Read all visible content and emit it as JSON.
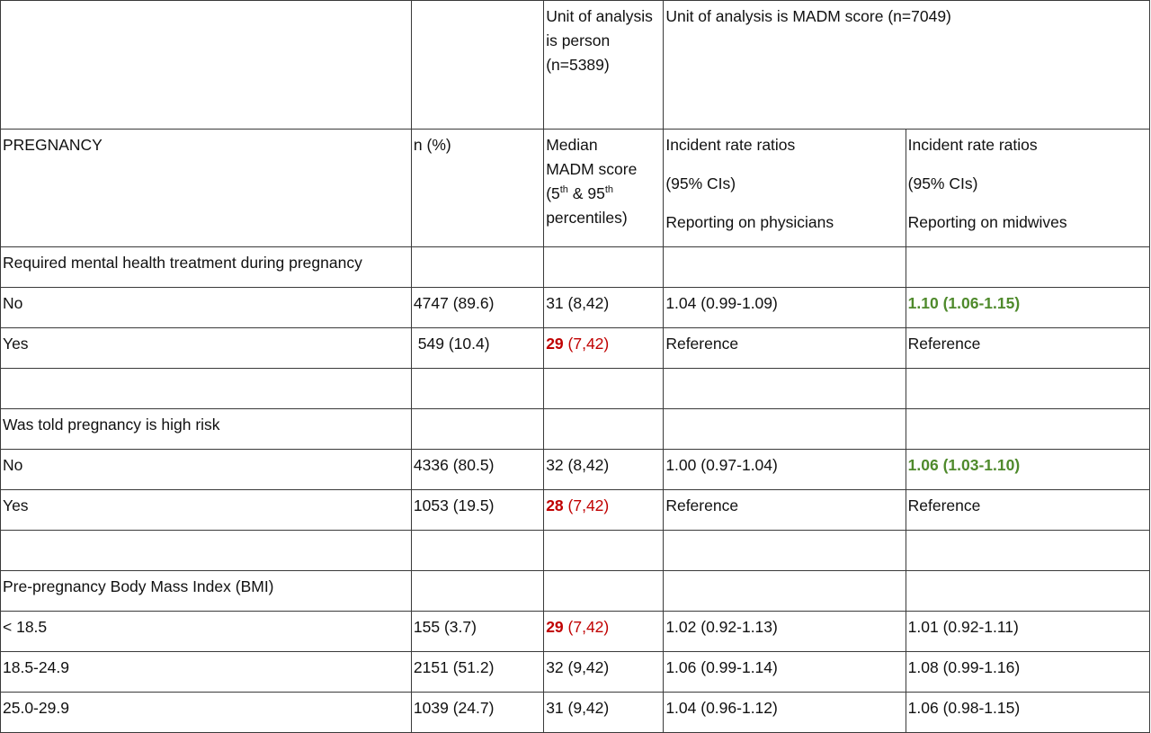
{
  "header_top": {
    "unit_person": [
      "Unit of analysis",
      "is person",
      "(n=5389)"
    ],
    "unit_madm": "Unit of analysis is MADM score (n=7049)"
  },
  "header_main": {
    "col1": "PREGNANCY",
    "col2": "n (%)",
    "col3": {
      "line1": "Median",
      "line2": "MADM score",
      "line3_pre": "(5",
      "sup1": "th",
      "line3_mid": " & 95",
      "sup2": "th",
      "line4": "percentiles)"
    },
    "col4": [
      "Incident rate ratios",
      "(95% CIs)",
      "Reporting on physicians"
    ],
    "col5": [
      "Incident rate ratios",
      "(95% CIs)",
      "Reporting on midwives"
    ]
  },
  "rows": [
    {
      "label": "Required mental health treatment during pregnancy",
      "n": "",
      "median_bold": "",
      "median_rest": "",
      "irr_phys": "",
      "irr_mid": ""
    },
    {
      "label": "No",
      "n": "4747 (89.6)",
      "median_bold": "",
      "median_rest": "31 (8,42)",
      "irr_phys": "1.04 (0.99-1.09)",
      "irr_mid": "1.10 (1.06-1.15)"
    },
    {
      "label": "Yes",
      "n": " 549 (10.4)",
      "median_bold": "29",
      "median_rest": " (7,42)",
      "irr_phys": "Reference",
      "irr_mid": "Reference"
    },
    {
      "label": "",
      "n": "",
      "median_bold": "",
      "median_rest": "",
      "irr_phys": "",
      "irr_mid": ""
    },
    {
      "label": "Was told pregnancy is high risk",
      "n": "",
      "median_bold": "",
      "median_rest": "",
      "irr_phys": "",
      "irr_mid": ""
    },
    {
      "label": "No",
      "n": "4336 (80.5)",
      "median_bold": "",
      "median_rest": "32 (8,42)",
      "irr_phys": "1.00 (0.97-1.04)",
      "irr_mid": "1.06 (1.03-1.10)"
    },
    {
      "label": "Yes",
      "n": "1053 (19.5)",
      "median_bold": "28",
      "median_rest": " (7,42)",
      "irr_phys": "Reference",
      "irr_mid": "Reference"
    },
    {
      "label": "",
      "n": "",
      "median_bold": "",
      "median_rest": "",
      "irr_phys": "",
      "irr_mid": ""
    },
    {
      "label": "Pre-pregnancy Body Mass Index (BMI)",
      "n": "",
      "median_bold": "",
      "median_rest": "",
      "irr_phys": "",
      "irr_mid": ""
    },
    {
      "label": "< 18.5",
      "n": "155 (3.7)",
      "median_bold": "29",
      "median_rest": " (7,42)",
      "irr_phys": "1.02 (0.92-1.13)",
      "irr_mid": "1.01 (0.92-1.11)"
    },
    {
      "label": "18.5-24.9",
      "n": "2151 (51.2)",
      "median_bold": "",
      "median_rest": "32 (9,42)",
      "irr_phys": "1.06 (0.99-1.14)",
      "irr_mid": "1.08 (0.99-1.16)"
    },
    {
      "label": "25.0-29.9",
      "n": "1039 (24.7)",
      "median_bold": "",
      "median_rest": "31 (9,42)",
      "irr_phys": "1.04 (0.96-1.12)",
      "irr_mid": "1.06 (0.98-1.15)"
    }
  ],
  "colors": {
    "significant_low_median": "#c00000",
    "significant_irr": "#4f8a2c",
    "border": "#3a3a3a"
  }
}
